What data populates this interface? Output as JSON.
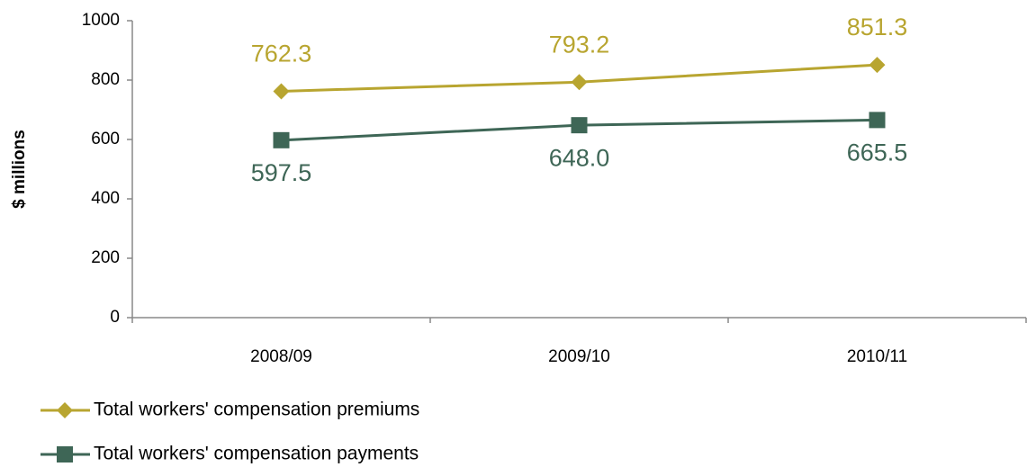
{
  "chart_data": {
    "type": "line",
    "y_label": "$ millions",
    "categories": [
      "2008/09",
      "2009/10",
      "2010/11"
    ],
    "series": [
      {
        "name": "Total workers' compensation premiums",
        "color": "#b8a530",
        "marker": "diamond",
        "values": [
          762.3,
          793.2,
          851.3
        ],
        "value_labels": [
          "762.3",
          "793.2",
          "851.3"
        ],
        "label_position": "above"
      },
      {
        "name": "Total workers' compensation payments",
        "color": "#3e6656",
        "marker": "square",
        "values": [
          597.5,
          648.0,
          665.5
        ],
        "value_labels": [
          "597.5",
          "648.0",
          "665.5"
        ],
        "label_position": "below"
      }
    ],
    "ylim": [
      0,
      1000
    ],
    "yticks": [
      0,
      200,
      400,
      600,
      800,
      1000
    ],
    "grid": false,
    "legend": "bottom-left"
  }
}
